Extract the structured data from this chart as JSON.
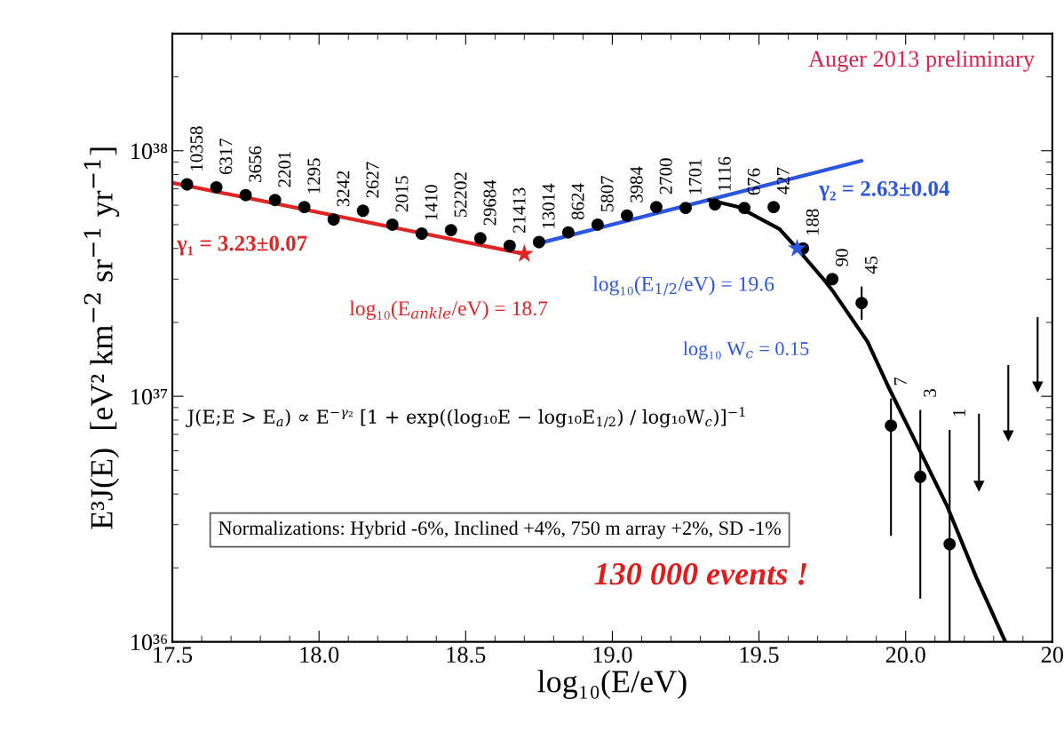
{
  "chart_data": {
    "type": "scatter",
    "xlabel": "log₁₀(E/eV)",
    "ylabel": "E³J(E)  [eV² km$^{−2}$ sr$^{−1}$ yr$^{−1}$]",
    "xlim": [
      17.5,
      20.5
    ],
    "xticks": [
      {
        "value": 17.5,
        "label": "17.5"
      },
      {
        "value": 18.0,
        "label": "18.0"
      },
      {
        "value": 18.5,
        "label": "18.5"
      },
      {
        "value": 19.0,
        "label": "19.0"
      },
      {
        "value": 19.5,
        "label": "19.5"
      },
      {
        "value": 20.0,
        "label": "20.0"
      },
      {
        "value": 20.5,
        "label": "20"
      }
    ],
    "log": "y",
    "ylim": [
      1e+36,
      3e+38
    ],
    "yticks": [
      {
        "value": 1e+36,
        "label": "10³⁶"
      },
      {
        "value": 1e+37,
        "label": "10³⁷"
      },
      {
        "value": 1e+38,
        "label": "10³⁸"
      }
    ],
    "series": [
      {
        "type": "line",
        "color": "#e02424",
        "marker": "none",
        "x": [
          17.5,
          18.7
        ],
        "values": [
          7.4e+37,
          3.8e+37
        ]
      },
      {
        "type": "line",
        "color": "#2a55e0",
        "marker": "none",
        "x": [
          18.75,
          19.85
        ],
        "values": [
          4.2e+37,
          9.1e+37
        ]
      },
      {
        "type": "line",
        "color": "#000000",
        "marker": "none",
        "x": [
          19.33,
          19.43,
          19.57,
          19.63,
          19.72,
          19.75,
          19.87,
          19.94,
          20.04,
          20.14,
          20.24,
          20.34
        ],
        "values": [
          6.3e+37,
          5.9e+37,
          4.8e+37,
          4e+37,
          3e+37,
          2.7e+37,
          1.67e+37,
          1.1e+37,
          6.3e+36,
          3.6e+36,
          1.84e+36,
          1e+36
        ]
      },
      {
        "color": "#000000",
        "marker": "circle",
        "x": [
          17.55,
          17.65,
          17.75,
          17.85,
          17.95,
          18.05,
          18.15,
          18.25,
          18.35,
          18.45,
          18.55,
          18.65,
          18.75,
          18.85,
          18.95,
          19.05,
          19.15,
          19.25,
          19.35,
          19.45,
          19.55,
          19.65,
          19.75,
          19.85,
          19.95,
          20.05,
          20.15
        ],
        "values": [
          7.3e+37,
          7.1e+37,
          6.6e+37,
          6.3e+37,
          5.9e+37,
          5.25e+37,
          5.7e+37,
          5e+37,
          4.6e+37,
          4.75e+37,
          4.4e+37,
          4.1e+37,
          4.25e+37,
          4.65e+37,
          5e+37,
          5.45e+37,
          5.9e+37,
          5.85e+37,
          6.05e+37,
          5.85e+37,
          5.9e+37,
          4e+37,
          3e+37,
          2.4e+37,
          7.6e+36,
          4.7e+36,
          2.5e+36
        ],
        "errors": [
          null,
          null,
          null,
          null,
          null,
          null,
          null,
          null,
          null,
          null,
          null,
          null,
          null,
          null,
          null,
          null,
          null,
          null,
          null,
          null,
          null,
          null,
          null,
          [
            2.05e+37,
            2.8e+37
          ],
          [
            2.7e+36,
            9.8e+36
          ],
          [
            1.5e+36,
            8.8e+36
          ],
          [
            1e+36,
            7.3e+36
          ]
        ]
      },
      {
        "color": "#000000",
        "marker": "triangle",
        "x": [
          20.25,
          20.35,
          20.45
        ],
        "values": [
          4.3e+36,
          6.9e+36,
          1.09e+37
        ],
        "errors": [
          [
            4.3e+36,
            8.5e+36
          ],
          [
            6.9e+36,
            1.34e+37
          ],
          [
            1.09e+37,
            2.1e+37
          ]
        ]
      },
      {
        "color": "#e02424",
        "marker": "star",
        "x": [
          18.7
        ],
        "values": [
          3.8e+37
        ]
      },
      {
        "color": "#2a55e0",
        "marker": "star",
        "x": [
          19.63
        ],
        "values": [
          4e+37
        ]
      }
    ],
    "annotations": [
      "Auger 2013 preliminary",
      "γ₁ = 3.23±0.07",
      "γ₂ = 2.63±0.04",
      "log₁₀(E$_{ankle}$/eV) = 18.7",
      "log₁₀(E$_{1/2}$/eV) = 19.6",
      "log₁₀ W$_{c}$ = 0.15",
      "J(E;E > E$_{a}$) ∝ E$^{−γ₂}$ [1 + exp((log₁₀E − log₁₀E$_{1/2}$) / log₁₀W$_{c}$)]$^{−1}$",
      "Normalizations: Hybrid -6%, Inclined +4%, 750 m array +2%, SD -1%",
      "130 000 events !",
      {
        "text": "10358",
        "x": 17.55,
        "y": 7.3e+37
      },
      {
        "text": "6317",
        "x": 17.65,
        "y": 7.1e+37
      },
      {
        "text": "3656",
        "x": 17.75,
        "y": 6.6e+37
      },
      {
        "text": "2201",
        "x": 17.85,
        "y": 6.3e+37
      },
      {
        "text": "1295",
        "x": 17.95,
        "y": 5.9e+37
      },
      {
        "text": "3242",
        "x": 18.05,
        "y": 5.25e+37
      },
      {
        "text": "2627",
        "x": 18.15,
        "y": 5.7e+37
      },
      {
        "text": "2015",
        "x": 18.25,
        "y": 5e+37
      },
      {
        "text": "1410",
        "x": 18.35,
        "y": 4.6e+37
      },
      {
        "text": "52202",
        "x": 18.45,
        "y": 4.75e+37
      },
      {
        "text": "29684",
        "x": 18.55,
        "y": 4.4e+37
      },
      {
        "text": "21413",
        "x": 18.65,
        "y": 4.1e+37
      },
      {
        "text": "13014",
        "x": 18.75,
        "y": 4.25e+37
      },
      {
        "text": "8624",
        "x": 18.85,
        "y": 4.65e+37
      },
      {
        "text": "5807",
        "x": 18.95,
        "y": 5e+37
      },
      {
        "text": "3984",
        "x": 19.05,
        "y": 5.45e+37
      },
      {
        "text": "2700",
        "x": 19.15,
        "y": 5.9e+37
      },
      {
        "text": "1701",
        "x": 19.25,
        "y": 5.85e+37
      },
      {
        "text": "1116",
        "x": 19.35,
        "y": 6.05e+37
      },
      {
        "text": "676",
        "x": 19.45,
        "y": 5.85e+37
      },
      {
        "text": "427",
        "x": 19.55,
        "y": 5.9e+37
      },
      {
        "text": "188",
        "x": 19.65,
        "y": 4e+37
      },
      {
        "text": "90",
        "x": 19.75,
        "y": 3e+37
      },
      {
        "text": "45",
        "x": 19.85,
        "y": 2.8e+37
      },
      {
        "text": "7",
        "x": 19.95,
        "y": 9.8e+36
      },
      {
        "text": "3",
        "x": 20.05,
        "y": 8.8e+36
      },
      {
        "text": "1",
        "x": 20.15,
        "y": 7.3e+36
      }
    ]
  }
}
